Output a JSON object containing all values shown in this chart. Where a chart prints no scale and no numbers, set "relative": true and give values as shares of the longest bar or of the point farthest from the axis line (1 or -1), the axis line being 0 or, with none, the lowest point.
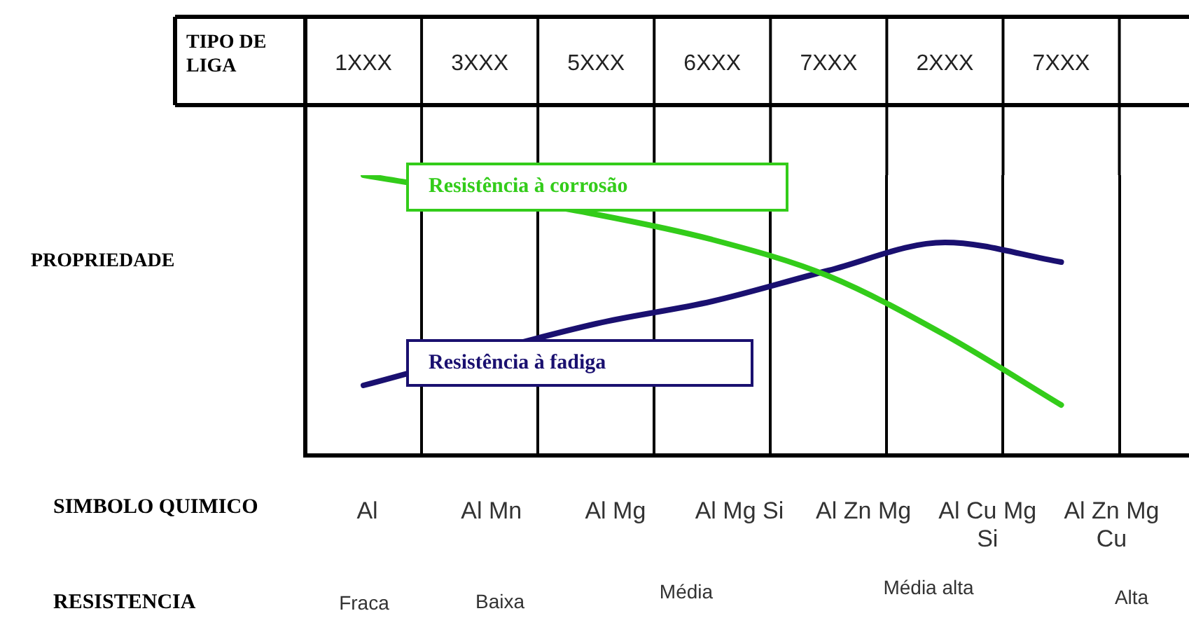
{
  "chart_data": {
    "type": "line",
    "xlabel": "TIPO DE LIGA",
    "relative": true,
    "grid": "x",
    "tick_labels": "x",
    "marker": "none",
    "categories": [
      "1XXX",
      "3XXX",
      "5XXX",
      "6XXX",
      "7XXX",
      "2XXX",
      "7XXX"
    ],
    "series": [
      {
        "name": "Resistência à corrosão",
        "color": "#33cc1a",
        "values": [
          1,
          null,
          0.86,
          0.77,
          0.64,
          0.43,
          0.18
        ]
      },
      {
        "name": "Resistência à fadiga",
        "color": "#1a1070",
        "values": [
          0.25,
          null,
          0.47,
          0.55,
          0.66,
          0.76,
          0.69
        ]
      }
    ],
    "annotations": [
      "PROPRIEDADE",
      "SIMBOLO QUIMICO",
      "Al",
      "Al Mn",
      "Al Mg",
      "Al Mg Si",
      "Al Zn Mg",
      "Al Cu Mg Si",
      "Al Zn Mg Cu",
      "RESISTENCIA",
      "Fraca",
      "Baixa",
      "Média",
      "Média alta",
      "Alta"
    ]
  }
}
